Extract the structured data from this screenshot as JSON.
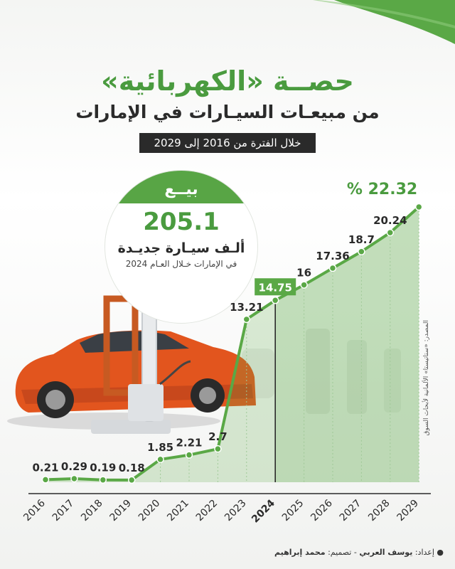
{
  "title": "حصــة «الكهربائية»",
  "subtitle": "من مبيعـات السيـارات في الإمارات",
  "period": "خلال الفترة من 2016 إلى 2029",
  "callout": {
    "label": "بيــع",
    "value": "205.1",
    "unit": "ألـف سيـارة جديـدة",
    "note": "في الإمارات خـلال العـام 2024"
  },
  "source": "المصدر: «ستاتيستا» الألمانية لأبحاث السوق",
  "credits": {
    "prefix": "● إعداد:",
    "author": "يوسف العربي",
    "separator": "- تصميم:",
    "designer": "محمد إبراهيم"
  },
  "colors": {
    "accent": "#5aa846",
    "dark": "#2a2a2a",
    "highlight": "#4a9b3f"
  },
  "chart_data": {
    "type": "area",
    "title": "حصــة «الكهربائية»",
    "x": [
      2016,
      2017,
      2018,
      2019,
      2020,
      2021,
      2022,
      2023,
      2024,
      2025,
      2026,
      2027,
      2028,
      2029
    ],
    "values": [
      0.21,
      0.29,
      0.19,
      0.18,
      1.85,
      2.21,
      2.7,
      13.21,
      14.75,
      16,
      17.36,
      18.7,
      20.24,
      22.32
    ],
    "value_labels": [
      "0.21",
      "0.29",
      "0.19",
      "0.18",
      "1.85",
      "2.21",
      "2.7",
      "13.21",
      "14.75",
      "16",
      "17.36",
      "18.7",
      "20.24",
      "22.32"
    ],
    "last_label_suffix": "% ",
    "highlight_year": 2024,
    "ylim": [
      0,
      22.32
    ],
    "grid": false,
    "xlabel": "",
    "ylabel": ""
  }
}
